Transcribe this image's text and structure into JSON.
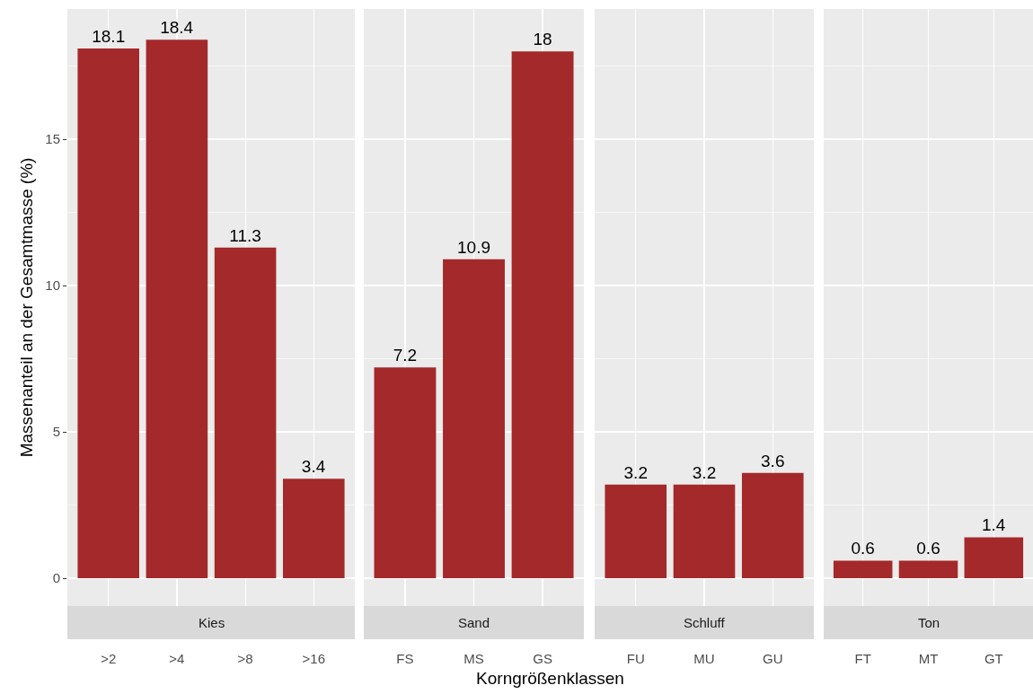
{
  "chart_data": [
    {
      "type": "bar",
      "title": "Kies",
      "ylabel": "Massenanteil an der Gesamtmasse (%)",
      "categories": [
        ">2",
        ">4",
        ">8",
        ">16"
      ],
      "values": [
        18.1,
        18.4,
        11.3,
        3.4
      ],
      "color": "#a4292b",
      "ylim": [
        -0.95,
        19.45
      ],
      "yticks": [
        0,
        5,
        10,
        15
      ],
      "grid": true,
      "data_labels": true
    },
    {
      "type": "bar",
      "title": "Sand",
      "xlabel": "Korngrößenklassen",
      "categories": [
        "FS",
        "MS",
        "GS"
      ],
      "values": [
        7.2,
        10.9,
        18
      ],
      "color": "#a4292b",
      "ylim": [
        -0.95,
        19.45
      ],
      "yticks": [
        0,
        5,
        10,
        15
      ],
      "grid": true,
      "data_labels": true,
      "tick_labels": "x"
    },
    {
      "type": "bar",
      "title": "Schluff",
      "categories": [
        "FU",
        "MU",
        "GU"
      ],
      "values": [
        3.2,
        3.2,
        3.6
      ],
      "color": "#a4292b",
      "ylim": [
        -0.95,
        19.45
      ],
      "yticks": [
        0,
        5,
        10,
        15
      ],
      "grid": true,
      "data_labels": true,
      "tick_labels": "x"
    },
    {
      "type": "bar",
      "title": "Ton",
      "categories": [
        "FT",
        "MT",
        "GT"
      ],
      "values": [
        0.6,
        0.6,
        1.4
      ],
      "color": "#a4292b",
      "ylim": [
        -0.95,
        19.45
      ],
      "yticks": [
        0,
        5,
        10,
        15
      ],
      "grid": true,
      "data_labels": true,
      "tick_labels": "x"
    }
  ]
}
